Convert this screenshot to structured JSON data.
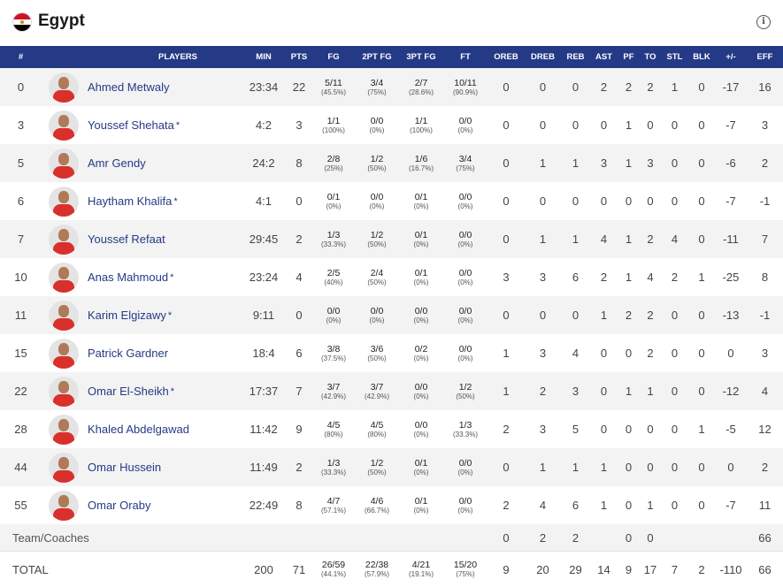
{
  "team": {
    "name": "Egypt"
  },
  "headers": [
    "#",
    "PLAYERS",
    "MIN",
    "PTS",
    "FG",
    "2PT FG",
    "3PT FG",
    "FT",
    "OREB",
    "DREB",
    "REB",
    "AST",
    "PF",
    "TO",
    "STL",
    "BLK",
    "+/-",
    "EFF"
  ],
  "players": [
    {
      "num": "0",
      "name": "Ahmed Metwaly",
      "star": "",
      "min": "23:34",
      "pts": "22",
      "fg": "5/11",
      "fg_pct": "(45.5%)",
      "fg2": "3/4",
      "fg2_pct": "(75%)",
      "fg3": "2/7",
      "fg3_pct": "(28.6%)",
      "ft": "10/11",
      "ft_pct": "(90.9%)",
      "oreb": "0",
      "dreb": "0",
      "reb": "0",
      "ast": "2",
      "pf": "2",
      "to": "2",
      "stl": "1",
      "blk": "0",
      "pm": "-17",
      "eff": "16"
    },
    {
      "num": "3",
      "name": "Youssef Shehata",
      "star": "*",
      "min": "4:2",
      "pts": "3",
      "fg": "1/1",
      "fg_pct": "(100%)",
      "fg2": "0/0",
      "fg2_pct": "(0%)",
      "fg3": "1/1",
      "fg3_pct": "(100%)",
      "ft": "0/0",
      "ft_pct": "(0%)",
      "oreb": "0",
      "dreb": "0",
      "reb": "0",
      "ast": "0",
      "pf": "1",
      "to": "0",
      "stl": "0",
      "blk": "0",
      "pm": "-7",
      "eff": "3"
    },
    {
      "num": "5",
      "name": "Amr Gendy",
      "star": "",
      "min": "24:2",
      "pts": "8",
      "fg": "2/8",
      "fg_pct": "(25%)",
      "fg2": "1/2",
      "fg2_pct": "(50%)",
      "fg3": "1/6",
      "fg3_pct": "(16.7%)",
      "ft": "3/4",
      "ft_pct": "(75%)",
      "oreb": "0",
      "dreb": "1",
      "reb": "1",
      "ast": "3",
      "pf": "1",
      "to": "3",
      "stl": "0",
      "blk": "0",
      "pm": "-6",
      "eff": "2"
    },
    {
      "num": "6",
      "name": "Haytham Khalifa",
      "star": "*",
      "min": "4:1",
      "pts": "0",
      "fg": "0/1",
      "fg_pct": "(0%)",
      "fg2": "0/0",
      "fg2_pct": "(0%)",
      "fg3": "0/1",
      "fg3_pct": "(0%)",
      "ft": "0/0",
      "ft_pct": "(0%)",
      "oreb": "0",
      "dreb": "0",
      "reb": "0",
      "ast": "0",
      "pf": "0",
      "to": "0",
      "stl": "0",
      "blk": "0",
      "pm": "-7",
      "eff": "-1"
    },
    {
      "num": "7",
      "name": "Youssef Refaat",
      "star": "",
      "min": "29:45",
      "pts": "2",
      "fg": "1/3",
      "fg_pct": "(33.3%)",
      "fg2": "1/2",
      "fg2_pct": "(50%)",
      "fg3": "0/1",
      "fg3_pct": "(0%)",
      "ft": "0/0",
      "ft_pct": "(0%)",
      "oreb": "0",
      "dreb": "1",
      "reb": "1",
      "ast": "4",
      "pf": "1",
      "to": "2",
      "stl": "4",
      "blk": "0",
      "pm": "-11",
      "eff": "7"
    },
    {
      "num": "10",
      "name": "Anas Mahmoud",
      "star": "*",
      "min": "23:24",
      "pts": "4",
      "fg": "2/5",
      "fg_pct": "(40%)",
      "fg2": "2/4",
      "fg2_pct": "(50%)",
      "fg3": "0/1",
      "fg3_pct": "(0%)",
      "ft": "0/0",
      "ft_pct": "(0%)",
      "oreb": "3",
      "dreb": "3",
      "reb": "6",
      "ast": "2",
      "pf": "1",
      "to": "4",
      "stl": "2",
      "blk": "1",
      "pm": "-25",
      "eff": "8"
    },
    {
      "num": "11",
      "name": "Karim Elgizawy",
      "star": "*",
      "min": "9:11",
      "pts": "0",
      "fg": "0/0",
      "fg_pct": "(0%)",
      "fg2": "0/0",
      "fg2_pct": "(0%)",
      "fg3": "0/0",
      "fg3_pct": "(0%)",
      "ft": "0/0",
      "ft_pct": "(0%)",
      "oreb": "0",
      "dreb": "0",
      "reb": "0",
      "ast": "1",
      "pf": "2",
      "to": "2",
      "stl": "0",
      "blk": "0",
      "pm": "-13",
      "eff": "-1"
    },
    {
      "num": "15",
      "name": "Patrick Gardner",
      "star": "",
      "min": "18:4",
      "pts": "6",
      "fg": "3/8",
      "fg_pct": "(37.5%)",
      "fg2": "3/6",
      "fg2_pct": "(50%)",
      "fg3": "0/2",
      "fg3_pct": "(0%)",
      "ft": "0/0",
      "ft_pct": "(0%)",
      "oreb": "1",
      "dreb": "3",
      "reb": "4",
      "ast": "0",
      "pf": "0",
      "to": "2",
      "stl": "0",
      "blk": "0",
      "pm": "0",
      "eff": "3"
    },
    {
      "num": "22",
      "name": "Omar El-Sheikh",
      "star": "*",
      "min": "17:37",
      "pts": "7",
      "fg": "3/7",
      "fg_pct": "(42.9%)",
      "fg2": "3/7",
      "fg2_pct": "(42.9%)",
      "fg3": "0/0",
      "fg3_pct": "(0%)",
      "ft": "1/2",
      "ft_pct": "(50%)",
      "oreb": "1",
      "dreb": "2",
      "reb": "3",
      "ast": "0",
      "pf": "1",
      "to": "1",
      "stl": "0",
      "blk": "0",
      "pm": "-12",
      "eff": "4"
    },
    {
      "num": "28",
      "name": "Khaled Abdelgawad",
      "star": "",
      "min": "11:42",
      "pts": "9",
      "fg": "4/5",
      "fg_pct": "(80%)",
      "fg2": "4/5",
      "fg2_pct": "(80%)",
      "fg3": "0/0",
      "fg3_pct": "(0%)",
      "ft": "1/3",
      "ft_pct": "(33.3%)",
      "oreb": "2",
      "dreb": "3",
      "reb": "5",
      "ast": "0",
      "pf": "0",
      "to": "0",
      "stl": "0",
      "blk": "1",
      "pm": "-5",
      "eff": "12"
    },
    {
      "num": "44",
      "name": "Omar Hussein",
      "star": "",
      "min": "11:49",
      "pts": "2",
      "fg": "1/3",
      "fg_pct": "(33.3%)",
      "fg2": "1/2",
      "fg2_pct": "(50%)",
      "fg3": "0/1",
      "fg3_pct": "(0%)",
      "ft": "0/0",
      "ft_pct": "(0%)",
      "oreb": "0",
      "dreb": "1",
      "reb": "1",
      "ast": "1",
      "pf": "0",
      "to": "0",
      "stl": "0",
      "blk": "0",
      "pm": "0",
      "eff": "2"
    },
    {
      "num": "55",
      "name": "Omar Oraby",
      "star": "",
      "min": "22:49",
      "pts": "8",
      "fg": "4/7",
      "fg_pct": "(57.1%)",
      "fg2": "4/6",
      "fg2_pct": "(66.7%)",
      "fg3": "0/1",
      "fg3_pct": "(0%)",
      "ft": "0/0",
      "ft_pct": "(0%)",
      "oreb": "2",
      "dreb": "4",
      "reb": "6",
      "ast": "1",
      "pf": "0",
      "to": "1",
      "stl": "0",
      "blk": "0",
      "pm": "-7",
      "eff": "11"
    }
  ],
  "team_coaches": {
    "label": "Team/Coaches",
    "oreb": "0",
    "dreb": "2",
    "reb": "2",
    "ast": "",
    "pf": "0",
    "to": "0",
    "stl": "",
    "blk": "",
    "pm": "",
    "eff": "66"
  },
  "total": {
    "label": "TOTAL",
    "min": "200",
    "pts": "71",
    "fg": "26/59",
    "fg_pct": "(44.1%)",
    "fg2": "22/38",
    "fg2_pct": "(57.9%)",
    "fg3": "4/21",
    "fg3_pct": "(19.1%)",
    "ft": "15/20",
    "ft_pct": "(75%)",
    "oreb": "9",
    "dreb": "20",
    "reb": "29",
    "ast": "14",
    "pf": "9",
    "to": "17",
    "stl": "7",
    "blk": "2",
    "pm": "-110",
    "eff": "66"
  },
  "colors": {
    "header_bg": "#253a86",
    "link": "#253a86",
    "row_alt": "#f3f3f3",
    "flag_red": "#ce1126",
    "flag_black": "#000000"
  },
  "icons": {
    "flag": "egypt-flag-icon",
    "info": "info-icon",
    "avatar": "player-avatar"
  }
}
